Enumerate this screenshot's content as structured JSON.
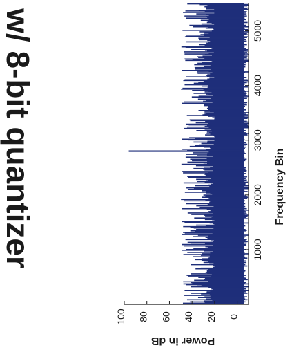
{
  "title_fragment": "w/ 8-bit quantizer",
  "chart_data": {
    "type": "bar",
    "orientation": "rotated-90-clockwise",
    "xlabel": "Frequency Bin",
    "ylabel": "Power in dB",
    "xlim": [
      0,
      5500
    ],
    "ylim": [
      -10,
      100
    ],
    "xticks": [
      1000,
      2000,
      3000,
      4000,
      5000
    ],
    "xtick_labels": [
      "1000",
      "2000",
      "3000",
      "4000",
      "5000"
    ],
    "yticks": [
      0,
      20,
      40,
      60,
      80,
      100
    ],
    "ytick_labels": [
      "0",
      "20",
      "40",
      "60",
      "80",
      "100"
    ],
    "grid": false,
    "series": [
      {
        "color": "#1f2f7a",
        "noise_floor_bins": [
          0,
          5500
        ],
        "noise_peak_db_range": [
          20,
          48
        ],
        "noise_floor_min_db": [
          -10,
          -2
        ]
      }
    ],
    "peak": {
      "x": 2800,
      "y": 96
    },
    "colors": {
      "bars": "#1f2f7a",
      "axis": "#1a1a1a"
    }
  }
}
